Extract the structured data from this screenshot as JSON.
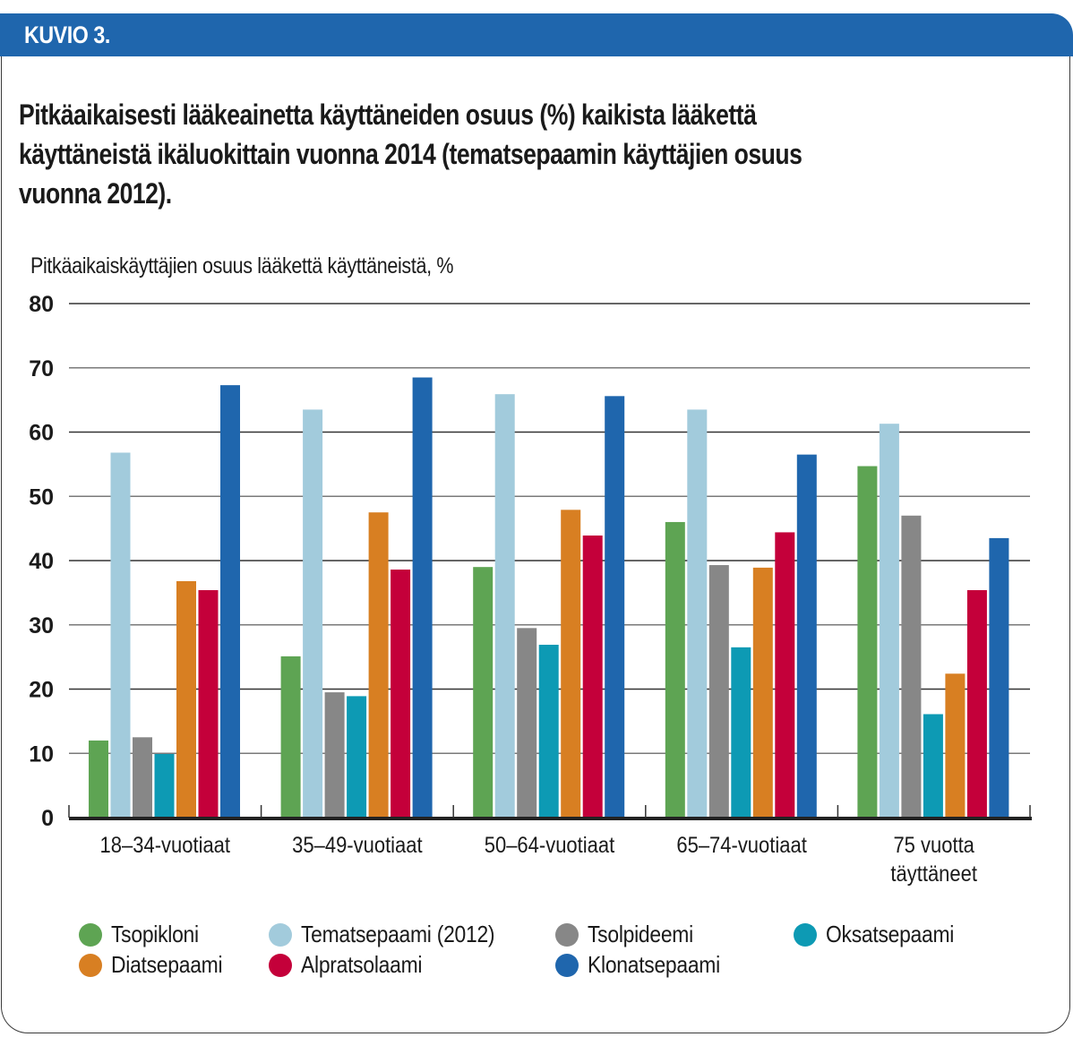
{
  "header": {
    "label": "KUVIO 3."
  },
  "title_lines": [
    "Pitkäaikaisesti lääkeainetta käyttäneiden osuus (%) kaikista lääkettä",
    "käyttäneistä ikäluokittain vuonna 2014 (tematsepaamin käyttäjien osuus",
    "vuonna 2012)."
  ],
  "chart_data": {
    "type": "bar",
    "title": "Pitkäaikaisesti lääkeainetta käyttäneiden osuus (%) kaikista lääkettä käyttäneistä ikäluokittain vuonna 2014 (tematsepaamin käyttäjien osuus vuonna 2012).",
    "ylabel": "Pitkäaikaiskäyttäjien osuus lääkettä käyttäneistä, %",
    "xlabel": "",
    "ylim": [
      0,
      80
    ],
    "yticks": [
      0,
      10,
      20,
      30,
      40,
      50,
      60,
      70,
      80
    ],
    "grid": true,
    "legend_position": "bottom",
    "categories": [
      [
        "18–34-vuotiaat"
      ],
      [
        "35–49-vuotiaat"
      ],
      [
        "50–64-vuotiaat"
      ],
      [
        "65–74-vuotiaat"
      ],
      [
        "75 vuotta",
        "täyttäneet"
      ]
    ],
    "series": [
      {
        "name": "Tsopikloni",
        "color": "#5ea453",
        "values": [
          12.0,
          25.1,
          39.0,
          46.0,
          54.7
        ]
      },
      {
        "name": "Tematsepaami (2012)",
        "color": "#a2cbdc",
        "values": [
          56.8,
          63.5,
          65.9,
          63.5,
          61.3
        ]
      },
      {
        "name": "Tsolpideemi",
        "color": "#878787",
        "values": [
          12.5,
          19.5,
          29.5,
          39.3,
          47.0
        ]
      },
      {
        "name": "Oksatsepaami",
        "color": "#0d9ab4",
        "values": [
          9.9,
          18.9,
          26.9,
          26.5,
          16.1
        ]
      },
      {
        "name": "Diatsepaami",
        "color": "#d87f22",
        "values": [
          36.8,
          47.5,
          47.9,
          38.9,
          22.4
        ]
      },
      {
        "name": "Alpratsolaami",
        "color": "#c4003a",
        "values": [
          35.4,
          38.6,
          43.9,
          44.4,
          35.4
        ]
      },
      {
        "name": "Klonatsepaami",
        "color": "#1f66ad",
        "values": [
          67.3,
          68.5,
          65.6,
          56.5,
          43.5
        ]
      }
    ]
  },
  "colors": {
    "header": "#1f66ad",
    "grid": "#555555",
    "axis": "#222222"
  }
}
